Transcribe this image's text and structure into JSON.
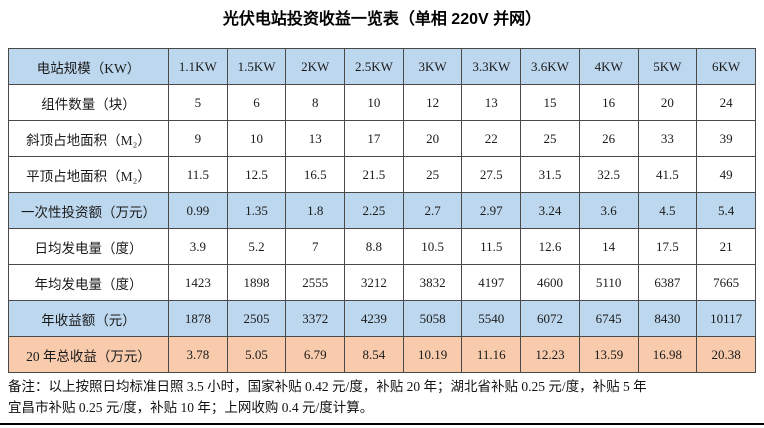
{
  "title": "光伏电站投资收益一览表（单相 220V 并网）",
  "colors": {
    "header_blue": "#BDD7EE",
    "highlight_orange": "#F8CBAD",
    "border": "#4a4a4a"
  },
  "chart_data": {
    "type": "table",
    "title": "光伏电站投资收益一览表（单相 220V 并网）",
    "rows": [
      {
        "label": "电站规模（KW）",
        "highlight": "blue",
        "values": [
          "1.1KW",
          "1.5KW",
          "2KW",
          "2.5KW",
          "3KW",
          "3.3KW",
          "3.6KW",
          "4KW",
          "5KW",
          "6KW"
        ]
      },
      {
        "label": "组件数量（块）",
        "highlight": "none",
        "values": [
          "5",
          "6",
          "8",
          "10",
          "12",
          "13",
          "15",
          "16",
          "20",
          "24"
        ]
      },
      {
        "label": "斜顶占地面积（M₂）",
        "highlight": "none",
        "values": [
          "9",
          "10",
          "13",
          "17",
          "20",
          "22",
          "25",
          "26",
          "33",
          "39"
        ]
      },
      {
        "label": "平顶占地面积（M₂）",
        "highlight": "none",
        "values": [
          "11.5",
          "12.5",
          "16.5",
          "21.5",
          "25",
          "27.5",
          "31.5",
          "32.5",
          "41.5",
          "49"
        ]
      },
      {
        "label": "一次性投资额（万元）",
        "highlight": "blue",
        "values": [
          "0.99",
          "1.35",
          "1.8",
          "2.25",
          "2.7",
          "2.97",
          "3.24",
          "3.6",
          "4.5",
          "5.4"
        ]
      },
      {
        "label": "日均发电量（度）",
        "highlight": "none",
        "values": [
          "3.9",
          "5.2",
          "7",
          "8.8",
          "10.5",
          "11.5",
          "12.6",
          "14",
          "17.5",
          "21"
        ]
      },
      {
        "label": "年均发电量（度）",
        "highlight": "none",
        "values": [
          "1423",
          "1898",
          "2555",
          "3212",
          "3832",
          "4197",
          "4600",
          "5110",
          "6387",
          "7665"
        ]
      },
      {
        "label": "年收益额（元）",
        "highlight": "blue",
        "values": [
          "1878",
          "2505",
          "3372",
          "4239",
          "5058",
          "5540",
          "6072",
          "6745",
          "8430",
          "10117"
        ]
      },
      {
        "label": "20 年总收益（万元）",
        "highlight": "orange",
        "values": [
          "3.78",
          "5.05",
          "6.79",
          "8.54",
          "10.19",
          "11.16",
          "12.23",
          "13.59",
          "16.98",
          "20.38"
        ]
      }
    ]
  },
  "notes": [
    "备注：以上按照日均标准日照 3.5 小时，国家补贴 0.42 元/度，补贴 20 年；湖北省补贴 0.25 元/度，补贴 5 年",
    "宜昌市补贴 0.25 元/度，补贴 10 年；上网收购 0.4 元/度计算。"
  ]
}
